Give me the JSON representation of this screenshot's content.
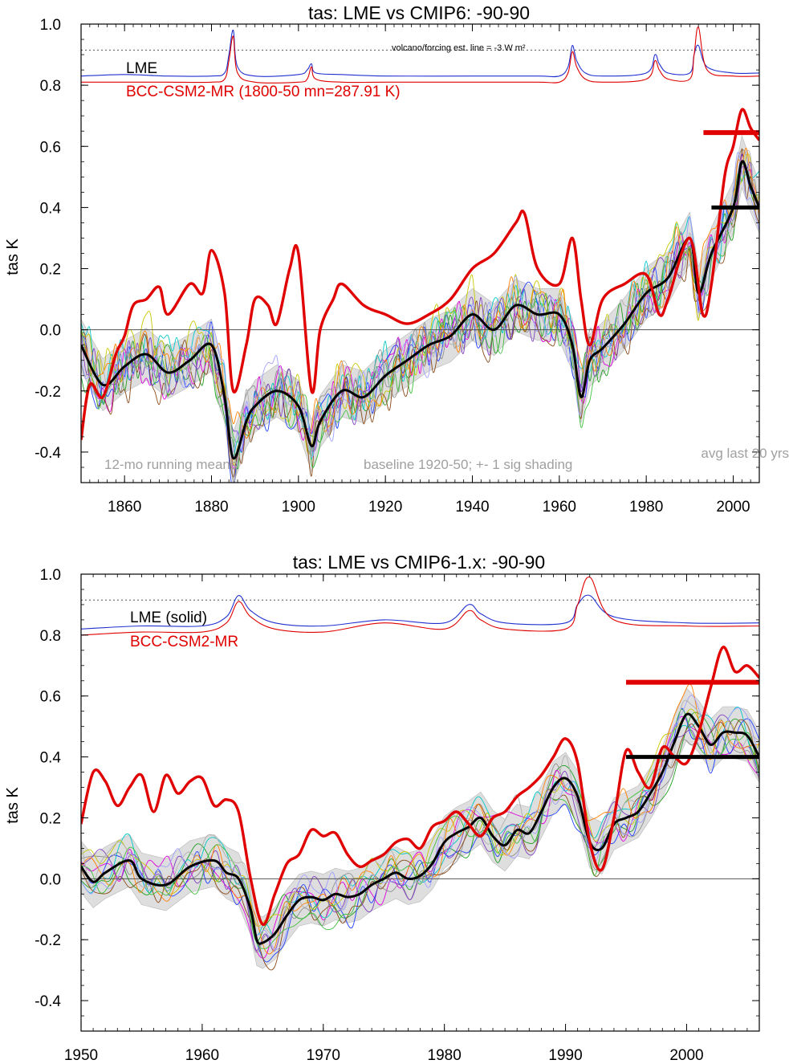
{
  "colors": {
    "lme": "#000000",
    "model": "#e00000",
    "lme_forcing": "#2030d0",
    "model_forcing": "#e00000",
    "shading": "#d8d8d8",
    "members": [
      "#1f9e1f",
      "#e000e0",
      "#00c8c8",
      "#2040ff",
      "#909090",
      "#c8c800",
      "#8a4a1a",
      "#8040c0",
      "#ff8000",
      "#40c040",
      "#a0a0ff",
      "#b0b0b0"
    ]
  },
  "chart_data": [
    {
      "type": "line",
      "title": "tas: LME vs CMIP6: -90-90",
      "ylabel": "tas K",
      "xlabel": "",
      "xlim": [
        1850,
        2006
      ],
      "ylim": [
        -0.5,
        1.0
      ],
      "xticks": [
        "1860",
        "1880",
        "1900",
        "1920",
        "1940",
        "1960",
        "1980",
        "2000"
      ],
      "xtick_values": [
        1860,
        1880,
        1900,
        1920,
        1940,
        1960,
        1980,
        2000
      ],
      "yticks": [
        "-0.4",
        "-0.2",
        "0.0",
        "0.2",
        "0.4",
        "0.6",
        "0.8",
        "1.0"
      ],
      "ytick_values": [
        -0.4,
        -0.2,
        0.0,
        0.2,
        0.4,
        0.6,
        0.8,
        1.0
      ],
      "zero_line": 0.0,
      "forcing_dotted_line": 0.915,
      "legend": {
        "placement": "top-left",
        "lme": "LME",
        "model": "BCC-CSM2-MR (1800-50 mn=287.91 K)"
      },
      "annotations": {
        "bottom_left": "12-mo running means",
        "bottom_center": "baseline 1920-50; +- 1 sig shading",
        "bottom_right": "avg last 20 yrs",
        "top_forcing": "volcano/forcing est.      line = -3 W m²"
      },
      "last20_avg": {
        "model": 0.645,
        "lme": 0.4,
        "from": 1995,
        "to": 2006
      },
      "series": [
        {
          "name": "LME",
          "role": "lme",
          "x": [
            1850,
            1855,
            1860,
            1865,
            1870,
            1875,
            1880,
            1883,
            1885,
            1888,
            1890,
            1895,
            1900,
            1903,
            1905,
            1910,
            1915,
            1920,
            1925,
            1930,
            1935,
            1940,
            1945,
            1950,
            1955,
            1960,
            1963,
            1965,
            1967,
            1970,
            1975,
            1980,
            1985,
            1990,
            1992,
            1995,
            2000,
            2002,
            2004,
            2006
          ],
          "y": [
            -0.05,
            -0.18,
            -0.12,
            -0.08,
            -0.14,
            -0.1,
            -0.05,
            -0.22,
            -0.42,
            -0.3,
            -0.25,
            -0.2,
            -0.25,
            -0.38,
            -0.3,
            -0.2,
            -0.22,
            -0.15,
            -0.1,
            -0.05,
            -0.02,
            0.05,
            0.0,
            0.08,
            0.05,
            0.05,
            -0.05,
            -0.22,
            -0.1,
            -0.06,
            0.02,
            0.12,
            0.17,
            0.3,
            0.12,
            0.25,
            0.4,
            0.55,
            0.47,
            0.4
          ]
        },
        {
          "name": "BCC-CSM2-MR",
          "role": "model",
          "x": [
            1850,
            1852,
            1855,
            1858,
            1860,
            1862,
            1865,
            1868,
            1870,
            1875,
            1878,
            1880,
            1883,
            1885,
            1888,
            1890,
            1893,
            1895,
            1898,
            1900,
            1903,
            1905,
            1908,
            1910,
            1915,
            1920,
            1925,
            1930,
            1935,
            1940,
            1945,
            1950,
            1952,
            1955,
            1960,
            1963,
            1965,
            1967,
            1970,
            1975,
            1980,
            1983,
            1985,
            1990,
            1993,
            1995,
            1998,
            2000,
            2002,
            2004,
            2006
          ],
          "y": [
            -0.36,
            -0.18,
            -0.22,
            -0.08,
            -0.02,
            0.08,
            0.1,
            0.14,
            0.05,
            0.15,
            0.12,
            0.26,
            0.12,
            -0.2,
            -0.05,
            0.1,
            0.08,
            0.02,
            0.2,
            0.25,
            -0.2,
            0.0,
            0.1,
            0.15,
            0.08,
            0.05,
            0.02,
            0.05,
            0.1,
            0.2,
            0.25,
            0.35,
            0.38,
            0.2,
            0.15,
            0.3,
            0.1,
            -0.05,
            0.1,
            0.15,
            0.18,
            0.05,
            0.1,
            0.3,
            0.05,
            0.15,
            0.5,
            0.6,
            0.72,
            0.66,
            0.62
          ]
        }
      ],
      "forcing": [
        {
          "name": "LME forcing",
          "role": "lme_forcing",
          "x": [
            1850,
            1860,
            1870,
            1880,
            1883,
            1884,
            1885,
            1886,
            1890,
            1900,
            1902,
            1903,
            1904,
            1910,
            1920,
            1940,
            1955,
            1960,
            1962,
            1963,
            1964,
            1966,
            1970,
            1980,
            1982,
            1983,
            1985,
            1990,
            1991,
            1992,
            1994,
            2000,
            2006
          ],
          "y": [
            0.83,
            0.835,
            0.83,
            0.83,
            0.84,
            0.9,
            0.98,
            0.86,
            0.83,
            0.835,
            0.85,
            0.87,
            0.84,
            0.835,
            0.83,
            0.83,
            0.83,
            0.83,
            0.86,
            0.93,
            0.88,
            0.84,
            0.83,
            0.84,
            0.9,
            0.87,
            0.84,
            0.84,
            0.9,
            0.93,
            0.86,
            0.84,
            0.84
          ]
        },
        {
          "name": "BCC-CSM2-MR forcing",
          "role": "model_forcing",
          "x": [
            1850,
            1860,
            1870,
            1880,
            1883,
            1884,
            1885,
            1886,
            1890,
            1900,
            1902,
            1903,
            1904,
            1910,
            1920,
            1940,
            1955,
            1960,
            1962,
            1963,
            1964,
            1966,
            1970,
            1980,
            1982,
            1983,
            1985,
            1990,
            1991,
            1992,
            1994,
            2000,
            2006
          ],
          "y": [
            0.81,
            0.81,
            0.81,
            0.81,
            0.82,
            0.88,
            0.96,
            0.84,
            0.81,
            0.81,
            0.82,
            0.86,
            0.82,
            0.81,
            0.81,
            0.81,
            0.81,
            0.81,
            0.84,
            0.91,
            0.86,
            0.82,
            0.81,
            0.82,
            0.88,
            0.85,
            0.82,
            0.82,
            0.9,
            0.99,
            0.85,
            0.83,
            0.83
          ]
        }
      ]
    },
    {
      "type": "line",
      "title": "tas: LME vs CMIP6-1.x: -90-90",
      "ylabel": "tas K",
      "xlabel": "",
      "xlim": [
        1950,
        2006
      ],
      "ylim": [
        -0.5,
        1.0
      ],
      "xticks": [
        "1950",
        "1960",
        "1970",
        "1980",
        "1990",
        "2000"
      ],
      "xtick_values": [
        1950,
        1960,
        1970,
        1980,
        1990,
        2000
      ],
      "yticks": [
        "-0.4",
        "-0.2",
        "0.0",
        "0.2",
        "0.4",
        "0.6",
        "0.8",
        "1.0"
      ],
      "ytick_values": [
        -0.4,
        -0.2,
        0.0,
        0.2,
        0.4,
        0.6,
        0.8,
        1.0
      ],
      "zero_line": 0.0,
      "forcing_dotted_line": 0.915,
      "legend": {
        "placement": "top-left",
        "lme": "LME (solid)",
        "model": "BCC-CSM2-MR"
      },
      "annotations": {},
      "last20_avg": {
        "model": 0.645,
        "lme": 0.4,
        "from": 1995,
        "to": 2006
      },
      "series": [
        {
          "name": "LME (solid)",
          "role": "lme",
          "x": [
            1950,
            1951,
            1952,
            1954,
            1955,
            1957,
            1959,
            1961,
            1962,
            1963,
            1964,
            1964.5,
            1965,
            1966,
            1967,
            1968,
            1969,
            1970,
            1971,
            1972,
            1973,
            1974,
            1975,
            1976,
            1977,
            1978,
            1979,
            1980,
            1981,
            1982,
            1983,
            1984,
            1985,
            1986,
            1987,
            1988,
            1989,
            1990,
            1991,
            1992,
            1993,
            1994,
            1995,
            1996,
            1997,
            1998,
            1999,
            2000,
            2001,
            2002,
            2003,
            2004,
            2005,
            2006
          ],
          "y": [
            0.04,
            -0.01,
            0.02,
            0.06,
            0.0,
            -0.02,
            0.04,
            0.06,
            0.02,
            0.0,
            -0.1,
            -0.2,
            -0.21,
            -0.18,
            -0.12,
            -0.07,
            -0.06,
            -0.07,
            -0.05,
            -0.06,
            -0.05,
            -0.02,
            0.0,
            0.02,
            0.0,
            0.01,
            0.05,
            0.12,
            0.15,
            0.17,
            0.2,
            0.14,
            0.11,
            0.16,
            0.15,
            0.22,
            0.3,
            0.33,
            0.27,
            0.12,
            0.1,
            0.18,
            0.2,
            0.22,
            0.28,
            0.35,
            0.45,
            0.54,
            0.5,
            0.44,
            0.48,
            0.48,
            0.47,
            0.4
          ]
        },
        {
          "name": "BCC-CSM2-MR",
          "role": "model",
          "x": [
            1950,
            1951,
            1952,
            1953,
            1954,
            1955,
            1956,
            1957,
            1958,
            1959,
            1960,
            1961,
            1962,
            1963,
            1964,
            1965,
            1966,
            1967,
            1968,
            1969,
            1970,
            1971,
            1972,
            1973,
            1974,
            1975,
            1976,
            1977,
            1978,
            1979,
            1980,
            1981,
            1982,
            1983,
            1984,
            1985,
            1986,
            1987,
            1988,
            1989,
            1990,
            1991,
            1992,
            1993,
            1994,
            1995,
            1996,
            1997,
            1998,
            1999,
            2000,
            2001,
            2002,
            2003,
            2004,
            2005,
            2006
          ],
          "y": [
            0.18,
            0.35,
            0.32,
            0.24,
            0.3,
            0.34,
            0.22,
            0.34,
            0.28,
            0.32,
            0.33,
            0.24,
            0.26,
            0.22,
            0.0,
            -0.15,
            -0.05,
            0.05,
            0.08,
            0.16,
            0.14,
            0.15,
            0.08,
            0.04,
            0.06,
            0.08,
            0.12,
            0.13,
            0.1,
            0.17,
            0.19,
            0.22,
            0.18,
            0.14,
            0.2,
            0.22,
            0.27,
            0.3,
            0.34,
            0.4,
            0.46,
            0.38,
            0.12,
            0.03,
            0.2,
            0.42,
            0.35,
            0.3,
            0.43,
            0.4,
            0.38,
            0.48,
            0.63,
            0.76,
            0.68,
            0.7,
            0.66
          ]
        }
      ],
      "forcing": [
        {
          "name": "LME forcing",
          "role": "lme_forcing",
          "x": [
            1950,
            1955,
            1960,
            1962,
            1963,
            1964,
            1966,
            1970,
            1975,
            1980,
            1982,
            1983,
            1985,
            1990,
            1991,
            1992,
            1994,
            2000,
            2006
          ],
          "y": [
            0.82,
            0.83,
            0.83,
            0.86,
            0.93,
            0.88,
            0.84,
            0.83,
            0.85,
            0.84,
            0.9,
            0.87,
            0.84,
            0.84,
            0.9,
            0.93,
            0.86,
            0.84,
            0.84
          ]
        },
        {
          "name": "BCC-CSM2-MR forcing",
          "role": "model_forcing",
          "x": [
            1950,
            1955,
            1960,
            1962,
            1963,
            1964,
            1966,
            1970,
            1975,
            1980,
            1982,
            1983,
            1985,
            1990,
            1991,
            1992,
            1994,
            2000,
            2006
          ],
          "y": [
            0.8,
            0.81,
            0.81,
            0.84,
            0.91,
            0.86,
            0.82,
            0.81,
            0.84,
            0.82,
            0.88,
            0.85,
            0.82,
            0.82,
            0.9,
            0.99,
            0.85,
            0.83,
            0.83
          ]
        }
      ]
    }
  ]
}
